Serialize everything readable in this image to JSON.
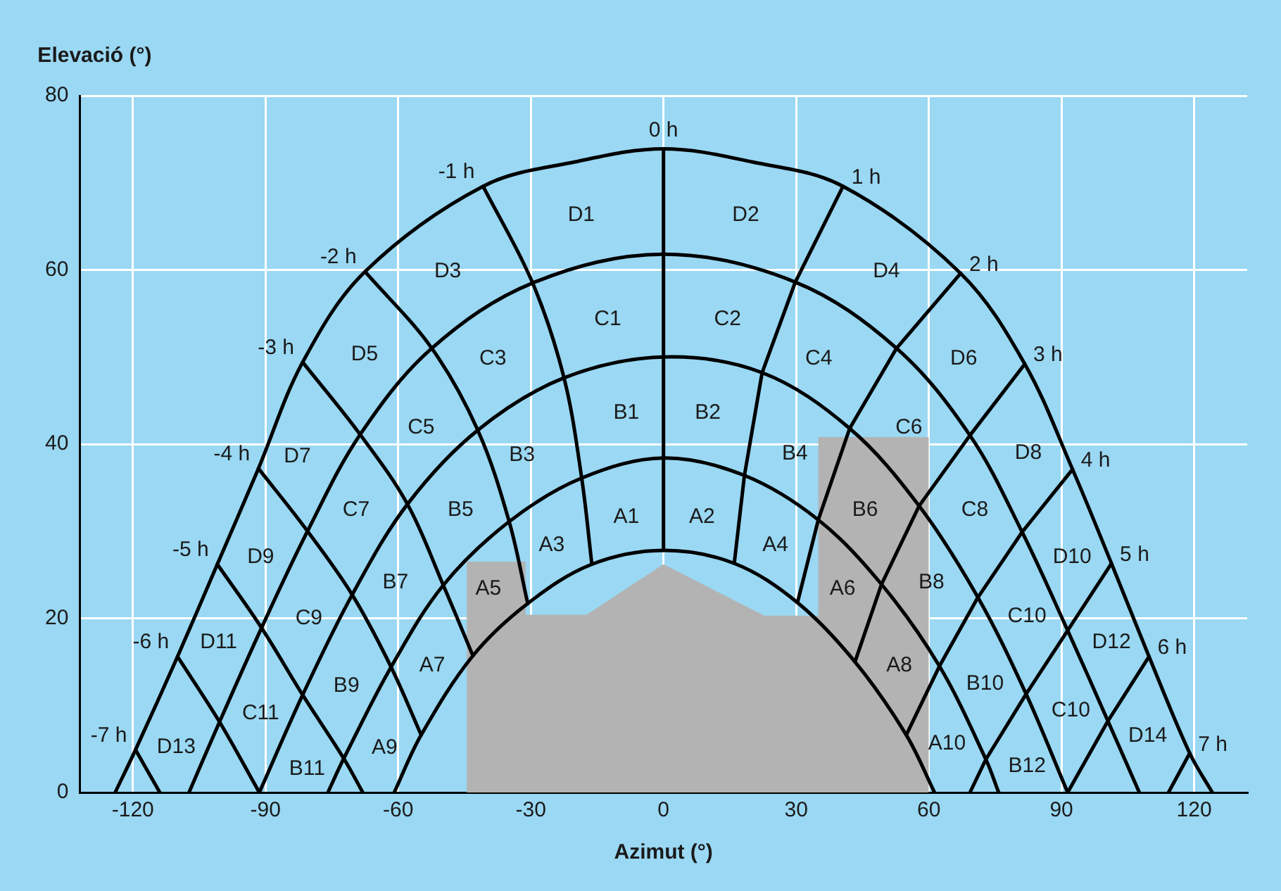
{
  "chart_data": {
    "type": "line",
    "xlabel": "Azimut (°)",
    "ylabel": "Elevació (°)",
    "xlim": [
      -132,
      132
    ],
    "ylim": [
      0,
      80
    ],
    "xticks": [
      -120,
      -90,
      -60,
      -30,
      0,
      30,
      60,
      90,
      120
    ],
    "yticks": [
      0,
      20,
      40,
      60,
      80
    ],
    "grid": true,
    "legend": false,
    "marker": "none",
    "line_style": "solid",
    "series": [
      {
        "color": "#000000",
        "x": [
          -124,
          -119.4,
          -109.9,
          -100.9,
          -91.6,
          -81.6,
          -67.5,
          -40.8,
          -20,
          0,
          20,
          40.6,
          67.2,
          81.7,
          92.5,
          101.3,
          109.8,
          119,
          124.1
        ],
        "values": [
          0,
          4.9,
          15.6,
          26.2,
          37.2,
          49.4,
          59.8,
          69.6,
          72.4,
          73.9,
          72.4,
          69.6,
          59.6,
          49.2,
          37.1,
          26.3,
          15.6,
          4.5,
          0
        ]
      },
      {
        "color": "#000000",
        "x": [
          -107.3,
          -100.4,
          -90.9,
          -80.5,
          -68.6,
          -52.4,
          -29.6,
          0,
          29.8,
          52.7,
          69.3,
          81.1,
          91.4,
          100.5,
          107.6
        ],
        "values": [
          0,
          8.1,
          18.9,
          30,
          41.1,
          51,
          58.5,
          61.8,
          58.6,
          51,
          41,
          29.9,
          18.6,
          8.2,
          0
        ]
      },
      {
        "color": "#000000",
        "x": [
          -91.4,
          -81.6,
          -70.4,
          -57.9,
          -42,
          -22.5,
          0,
          22.3,
          42.1,
          57.8,
          71.1,
          82,
          91.4
        ],
        "values": [
          0,
          11.2,
          22.7,
          33.1,
          41.6,
          47.6,
          50,
          48.2,
          41.8,
          32.9,
          22.4,
          11.3,
          0
        ]
      },
      {
        "color": "#000000",
        "x": [
          -75.9,
          -72.3,
          -61.6,
          -49.8,
          -34.9,
          -18.5,
          0,
          18.3,
          35,
          49.3,
          62.4,
          72.9,
          75.8
        ],
        "values": [
          0,
          3.9,
          14.4,
          23.8,
          31.1,
          36.1,
          38.4,
          36.4,
          31.3,
          23.9,
          14.5,
          3.8,
          0
        ]
      },
      {
        "color": "#000000",
        "x": [
          -60.9,
          -54.8,
          -43.1,
          -30.7,
          -16.2,
          0,
          16,
          30.3,
          43.3,
          54.9,
          61.3
        ],
        "values": [
          0,
          6.6,
          15.7,
          21.7,
          26.2,
          27.8,
          26.3,
          21.8,
          15,
          6.6,
          0
        ]
      },
      {
        "name": "0 h",
        "color": "#000000",
        "x": [
          0,
          0,
          0,
          0,
          0
        ],
        "values": [
          73.9,
          61.8,
          50,
          38.4,
          27.8
        ]
      },
      {
        "name": "1 h",
        "color": "#000000",
        "x": [
          40.6,
          29.8,
          22.3,
          18.3,
          16
        ],
        "values": [
          69.6,
          58.6,
          48.2,
          36.4,
          26.3
        ]
      },
      {
        "name": "-1 h",
        "color": "#000000",
        "x": [
          -40.8,
          -29.6,
          -22.5,
          -18.5,
          -16.2
        ],
        "values": [
          69.6,
          58.5,
          47.6,
          36.1,
          26.2
        ]
      },
      {
        "name": "2 h",
        "color": "#000000",
        "x": [
          67.2,
          52.7,
          42.1,
          35,
          30.3
        ],
        "values": [
          59.6,
          51,
          41.8,
          31.3,
          21.8
        ]
      },
      {
        "name": "-2 h",
        "color": "#000000",
        "x": [
          -67.5,
          -52.4,
          -42,
          -34.9,
          -30.7
        ],
        "values": [
          59.8,
          51,
          41.6,
          31.1,
          21.7
        ]
      },
      {
        "name": "3 h",
        "color": "#000000",
        "x": [
          81.7,
          69.3,
          57.8,
          49.3,
          43.3
        ],
        "values": [
          49.2,
          41,
          32.9,
          23.9,
          15
        ]
      },
      {
        "name": "-3 h",
        "color": "#000000",
        "x": [
          -81.6,
          -68.6,
          -57.9,
          -49.8,
          -43.1
        ],
        "values": [
          49.4,
          41.1,
          33.1,
          23.8,
          15.7
        ]
      },
      {
        "name": "4 h",
        "color": "#000000",
        "x": [
          92.5,
          81.1,
          71.1,
          62.4,
          54.9
        ],
        "values": [
          37.1,
          29.9,
          22.4,
          14.5,
          6.6
        ]
      },
      {
        "name": "-4 h",
        "color": "#000000",
        "x": [
          -91.6,
          -80.5,
          -70.4,
          -61.6,
          -54.8
        ],
        "values": [
          37.2,
          30,
          22.7,
          14.4,
          6.6
        ]
      },
      {
        "name": "5 h",
        "color": "#000000",
        "x": [
          101.3,
          91.4,
          82,
          72.9,
          69.3
        ],
        "values": [
          26.3,
          18.6,
          11.3,
          3.8,
          0
        ]
      },
      {
        "name": "-5 h",
        "color": "#000000",
        "x": [
          -100.9,
          -90.9,
          -81.6,
          -72.3,
          -68
        ],
        "values": [
          26.2,
          18.9,
          11.2,
          3.9,
          0
        ]
      },
      {
        "name": "6 h",
        "color": "#000000",
        "x": [
          109.8,
          100.5,
          91.4
        ],
        "values": [
          15.6,
          8.2,
          0
        ]
      },
      {
        "name": "-6 h",
        "color": "#000000",
        "x": [
          -109.9,
          -100.4,
          -91.4
        ],
        "values": [
          15.6,
          8.1,
          0
        ]
      },
      {
        "name": "7 h",
        "color": "#000000",
        "x": [
          119,
          114.2
        ],
        "values": [
          4.5,
          0
        ]
      },
      {
        "name": "-7 h",
        "color": "#000000",
        "x": [
          -119.4,
          -113.9
        ],
        "values": [
          4.9,
          0
        ]
      },
      {
        "type": "area",
        "color": "#b3b3b3",
        "x": [
          -44.5,
          -44.5,
          -31.2,
          -31.2,
          -17.4,
          0,
          22.8,
          35,
          35,
          60,
          60
        ],
        "values": [
          0,
          26.5,
          26.5,
          20.4,
          20.4,
          26.2,
          20.3,
          20.3,
          40.8,
          40.8,
          0
        ]
      }
    ],
    "annotations": [
      "D1",
      "D2",
      "D3",
      "D4",
      "C1",
      "C2",
      "D5",
      "C3",
      "C4",
      "D6",
      "B1",
      "B2",
      "C5",
      "C6",
      "D7",
      "B3",
      "B4",
      "D8",
      "A1",
      "A2",
      "B5",
      "B6",
      "C7",
      "C8",
      "A3",
      "A4",
      "D9",
      "D10",
      "A5",
      "A6",
      "B7",
      "B8",
      "C9",
      "C10",
      "D11",
      "D12",
      "A7",
      "A8",
      "B9",
      "B10",
      "C11",
      "C10",
      "D13",
      "D14",
      "A9",
      "A10",
      "B11",
      "B12"
    ]
  }
}
